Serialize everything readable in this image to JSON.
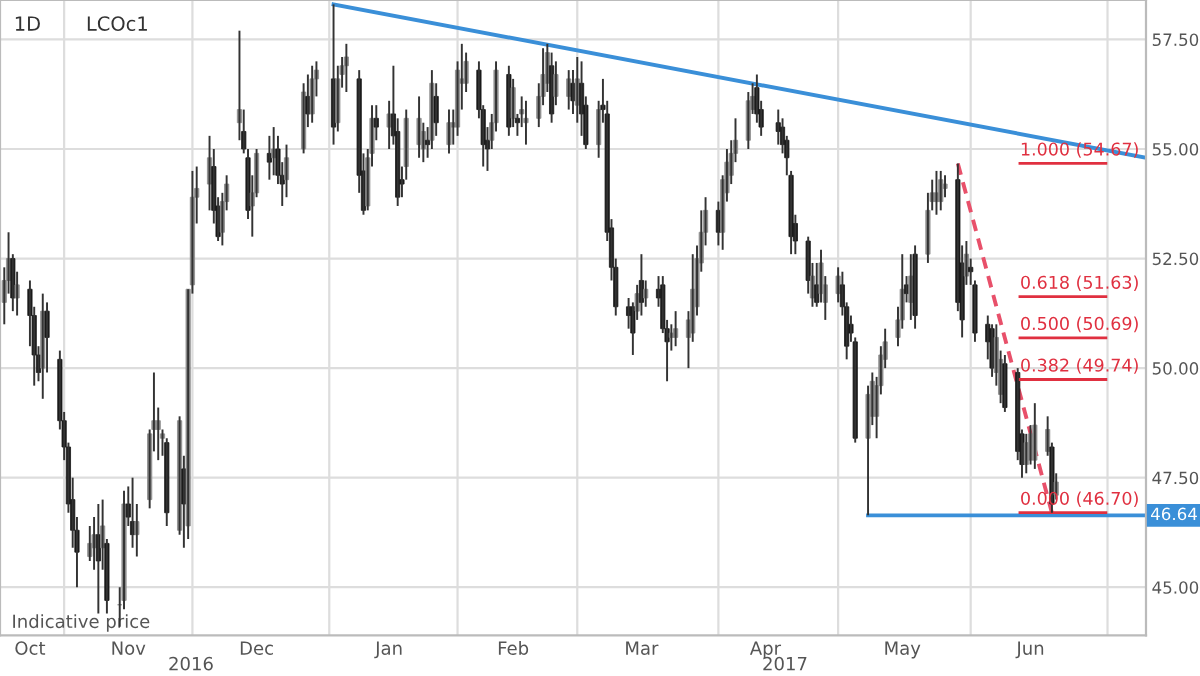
{
  "chart_data": {
    "type": "candlestick",
    "title": "1D",
    "subtitle": "LCOc1",
    "x": [
      "2016-10-18",
      "2016-10-19",
      "2016-10-20",
      "2016-10-21",
      "2016-10-24",
      "2016-10-25",
      "2016-10-26",
      "2016-10-27",
      "2016-10-28",
      "2016-10-31",
      "2016-11-01",
      "2016-11-02",
      "2016-11-03",
      "2016-11-04",
      "2016-11-07",
      "2016-11-08",
      "2016-11-09",
      "2016-11-10",
      "2016-11-11",
      "2016-11-14",
      "2016-11-15",
      "2016-11-16",
      "2016-11-17",
      "2016-11-18",
      "2016-11-21",
      "2016-11-22",
      "2016-11-23",
      "2016-11-24",
      "2016-11-25",
      "2016-11-28",
      "2016-11-29",
      "2016-11-30",
      "2016-12-01",
      "2016-12-02",
      "2016-12-05",
      "2016-12-06",
      "2016-12-07",
      "2016-12-08",
      "2016-12-09",
      "2016-12-12",
      "2016-12-13",
      "2016-12-14",
      "2016-12-15",
      "2016-12-16",
      "2016-12-19",
      "2016-12-20",
      "2016-12-21",
      "2016-12-22",
      "2016-12-23",
      "2016-12-27",
      "2016-12-28",
      "2016-12-29",
      "2016-12-30",
      "2017-01-03",
      "2017-01-04",
      "2017-01-05",
      "2017-01-06",
      "2017-01-09",
      "2017-01-10",
      "2017-01-11",
      "2017-01-12",
      "2017-01-13",
      "2017-01-16",
      "2017-01-17",
      "2017-01-18",
      "2017-01-19",
      "2017-01-20",
      "2017-01-23",
      "2017-01-24",
      "2017-01-25",
      "2017-01-26",
      "2017-01-27",
      "2017-01-30",
      "2017-01-31",
      "2017-02-01",
      "2017-02-02",
      "2017-02-03",
      "2017-02-06",
      "2017-02-07",
      "2017-02-08",
      "2017-02-09",
      "2017-02-10",
      "2017-02-13",
      "2017-02-14",
      "2017-02-15",
      "2017-02-16",
      "2017-02-17",
      "2017-02-20",
      "2017-02-21",
      "2017-02-22",
      "2017-02-23",
      "2017-02-24",
      "2017-02-27",
      "2017-02-28",
      "2017-03-01",
      "2017-03-02",
      "2017-03-03",
      "2017-03-06",
      "2017-03-07",
      "2017-03-08",
      "2017-03-09",
      "2017-03-10",
      "2017-03-13",
      "2017-03-14",
      "2017-03-15",
      "2017-03-16",
      "2017-03-17",
      "2017-03-20",
      "2017-03-21",
      "2017-03-22",
      "2017-03-23",
      "2017-03-24",
      "2017-03-27",
      "2017-03-28",
      "2017-03-29",
      "2017-03-30",
      "2017-03-31",
      "2017-04-03",
      "2017-04-04",
      "2017-04-05",
      "2017-04-06",
      "2017-04-07",
      "2017-04-10",
      "2017-04-11",
      "2017-04-12",
      "2017-04-13",
      "2017-04-17",
      "2017-04-18",
      "2017-04-19",
      "2017-04-20",
      "2017-04-21",
      "2017-04-24",
      "2017-04-25",
      "2017-04-26",
      "2017-04-27",
      "2017-04-28",
      "2017-05-01",
      "2017-05-02",
      "2017-05-03",
      "2017-05-04",
      "2017-05-05",
      "2017-05-08",
      "2017-05-09",
      "2017-05-10",
      "2017-05-11",
      "2017-05-12",
      "2017-05-15",
      "2017-05-16",
      "2017-05-17",
      "2017-05-18",
      "2017-05-19",
      "2017-05-22",
      "2017-05-23",
      "2017-05-24",
      "2017-05-25",
      "2017-05-26",
      "2017-05-29",
      "2017-05-30",
      "2017-05-31",
      "2017-06-01",
      "2017-06-02",
      "2017-06-05",
      "2017-06-06",
      "2017-06-07",
      "2017-06-08",
      "2017-06-09",
      "2017-06-12",
      "2017-06-13",
      "2017-06-14",
      "2017-06-15",
      "2017-06-16",
      "2017-06-19",
      "2017-06-20",
      "2017-06-21"
    ],
    "ohlc": [
      [
        51.5,
        52.3,
        51.0,
        52.0
      ],
      [
        52.0,
        53.1,
        51.7,
        52.5
      ],
      [
        52.5,
        52.6,
        51.3,
        51.6
      ],
      [
        51.6,
        52.2,
        51.2,
        51.9
      ],
      [
        51.8,
        52.0,
        50.5,
        51.2
      ],
      [
        51.2,
        51.4,
        49.6,
        50.3
      ],
      [
        50.3,
        50.5,
        49.7,
        49.9
      ],
      [
        50.0,
        51.7,
        49.3,
        51.3
      ],
      [
        51.3,
        51.5,
        49.9,
        50.7
      ],
      [
        50.2,
        50.4,
        48.6,
        48.8
      ],
      [
        48.8,
        49.0,
        47.9,
        48.2
      ],
      [
        48.2,
        48.3,
        46.7,
        46.9
      ],
      [
        47.0,
        47.5,
        45.9,
        46.3
      ],
      [
        46.3,
        46.6,
        45.0,
        45.8
      ],
      [
        45.7,
        46.4,
        45.6,
        46.0
      ],
      [
        45.9,
        46.6,
        45.4,
        46.2
      ],
      [
        46.2,
        46.9,
        44.4,
        45.6
      ],
      [
        45.9,
        47.0,
        45.4,
        46.4
      ],
      [
        46.0,
        46.1,
        44.4,
        44.7
      ],
      [
        44.6,
        45.0,
        44.1,
        44.6
      ],
      [
        44.7,
        47.2,
        44.5,
        46.9
      ],
      [
        46.9,
        47.3,
        46.4,
        46.6
      ],
      [
        46.5,
        47.5,
        45.9,
        46.2
      ],
      [
        46.2,
        46.9,
        45.7,
        46.5
      ],
      [
        47.0,
        48.6,
        46.8,
        48.5
      ],
      [
        48.6,
        49.9,
        48.1,
        48.8
      ],
      [
        48.6,
        49.1,
        47.9,
        48.8
      ],
      [
        48.4,
        48.6,
        48.0,
        48.5
      ],
      [
        48.3,
        48.4,
        46.4,
        46.7
      ],
      [
        46.3,
        48.9,
        46.2,
        48.8
      ],
      [
        47.7,
        48.0,
        45.9,
        46.9
      ],
      [
        46.4,
        51.8,
        46.1,
        51.8
      ],
      [
        51.9,
        54.5,
        51.7,
        53.9
      ],
      [
        53.9,
        54.6,
        53.3,
        54.1
      ],
      [
        54.2,
        55.3,
        53.6,
        54.8
      ],
      [
        54.6,
        55.0,
        53.3,
        53.6
      ],
      [
        53.7,
        53.9,
        52.9,
        53.0
      ],
      [
        53.1,
        54.0,
        52.8,
        53.8
      ],
      [
        53.8,
        54.4,
        53.6,
        54.2
      ],
      [
        55.6,
        57.7,
        55.2,
        55.9
      ],
      [
        55.4,
        55.9,
        54.9,
        55.0
      ],
      [
        54.8,
        55.0,
        53.4,
        53.6
      ],
      [
        53.7,
        54.4,
        53.0,
        54.0
      ],
      [
        54.0,
        55.0,
        53.9,
        54.9
      ],
      [
        54.9,
        55.3,
        54.3,
        54.7
      ],
      [
        54.8,
        55.5,
        54.4,
        55.0
      ],
      [
        55.0,
        55.3,
        54.2,
        54.4
      ],
      [
        54.4,
        54.7,
        53.7,
        54.2
      ],
      [
        54.3,
        55.1,
        53.9,
        54.8
      ],
      [
        55.0,
        56.5,
        54.9,
        56.3
      ],
      [
        56.2,
        56.7,
        55.5,
        55.8
      ],
      [
        55.8,
        56.9,
        55.6,
        56.6
      ],
      [
        56.6,
        57.0,
        56.2,
        56.8
      ],
      [
        56.6,
        58.3,
        55.1,
        55.5
      ],
      [
        55.6,
        56.9,
        55.4,
        56.6
      ],
      [
        56.7,
        57.1,
        56.4,
        56.9
      ],
      [
        56.9,
        57.4,
        56.3,
        57.1
      ],
      [
        56.6,
        56.8,
        54.0,
        54.4
      ],
      [
        54.5,
        54.9,
        53.5,
        53.6
      ],
      [
        53.7,
        55.0,
        53.6,
        54.8
      ],
      [
        54.9,
        56.0,
        54.6,
        55.7
      ],
      [
        55.7,
        56.0,
        55.2,
        55.5
      ],
      [
        55.5,
        56.1,
        55.0,
        55.8
      ],
      [
        55.8,
        56.9,
        55.1,
        55.3
      ],
      [
        55.4,
        55.7,
        53.7,
        53.9
      ],
      [
        54.3,
        54.6,
        53.9,
        54.2
      ],
      [
        54.6,
        55.9,
        54.3,
        55.7
      ],
      [
        55.1,
        56.2,
        54.8,
        55.7
      ],
      [
        55.0,
        55.6,
        54.7,
        55.4
      ],
      [
        55.2,
        55.5,
        54.8,
        55.1
      ],
      [
        55.2,
        56.8,
        55.0,
        56.5
      ],
      [
        56.2,
        56.5,
        55.3,
        55.6
      ],
      [
        55.1,
        55.9,
        54.9,
        55.6
      ],
      [
        55.5,
        55.9,
        55.1,
        55.6
      ],
      [
        55.5,
        57.0,
        55.3,
        56.8
      ],
      [
        56.5,
        57.4,
        55.9,
        56.6
      ],
      [
        56.5,
        57.2,
        56.3,
        57.0
      ],
      [
        56.8,
        57.0,
        55.7,
        55.9
      ],
      [
        55.9,
        56.0,
        54.6,
        55.1
      ],
      [
        55.2,
        55.5,
        54.5,
        55.0
      ],
      [
        55.2,
        55.8,
        55.0,
        55.6
      ],
      [
        55.6,
        57.0,
        55.4,
        56.8
      ],
      [
        56.7,
        56.9,
        55.3,
        55.5
      ],
      [
        55.7,
        56.6,
        55.5,
        56.4
      ],
      [
        55.7,
        55.8,
        55.3,
        55.6
      ],
      [
        55.8,
        56.2,
        55.5,
        55.9
      ],
      [
        55.6,
        56.1,
        55.1,
        55.7
      ],
      [
        55.7,
        56.5,
        55.5,
        56.2
      ],
      [
        56.2,
        57.3,
        56.0,
        56.7
      ],
      [
        56.5,
        57.4,
        56.3,
        57.2
      ],
      [
        56.9,
        57.2,
        55.6,
        55.8
      ],
      [
        56.2,
        57.0,
        56.0,
        56.7
      ],
      [
        56.2,
        56.8,
        55.9,
        56.6
      ],
      [
        56.5,
        56.8,
        55.8,
        56.1
      ],
      [
        56.0,
        57.1,
        55.6,
        56.6
      ],
      [
        56.5,
        57.0,
        55.3,
        55.8
      ],
      [
        56.0,
        56.2,
        55.0,
        55.1
      ],
      [
        55.1,
        56.1,
        54.8,
        55.9
      ],
      [
        56.0,
        56.6,
        55.6,
        55.9
      ],
      [
        55.8,
        56.1,
        52.9,
        53.1
      ],
      [
        53.2,
        53.4,
        52.0,
        52.3
      ],
      [
        52.3,
        52.5,
        51.2,
        51.4
      ],
      [
        51.4,
        51.6,
        50.9,
        51.2
      ],
      [
        51.4,
        51.5,
        50.3,
        50.8
      ],
      [
        51.3,
        51.9,
        51.1,
        51.7
      ],
      [
        52.0,
        52.6,
        51.2,
        51.5
      ],
      [
        51.6,
        52.0,
        51.4,
        51.8
      ],
      [
        51.8,
        52.1,
        51.4,
        51.6
      ],
      [
        51.9,
        52.1,
        50.8,
        50.9
      ],
      [
        50.9,
        51.1,
        49.7,
        50.6
      ],
      [
        50.7,
        51.0,
        50.4,
        50.8
      ],
      [
        50.7,
        51.3,
        50.5,
        50.9
      ],
      [
        50.7,
        51.3,
        50.0,
        51.1
      ],
      [
        50.8,
        52.6,
        50.6,
        51.8
      ],
      [
        51.4,
        52.8,
        51.2,
        52.5
      ],
      [
        52.4,
        53.6,
        52.2,
        53.1
      ],
      [
        53.1,
        53.9,
        52.8,
        53.6
      ],
      [
        53.6,
        53.8,
        52.8,
        53.1
      ],
      [
        53.1,
        54.4,
        52.7,
        54.3
      ],
      [
        54.0,
        55.0,
        53.8,
        54.7
      ],
      [
        54.4,
        55.2,
        54.2,
        54.9
      ],
      [
        54.9,
        55.7,
        54.7,
        55.2
      ],
      [
        55.2,
        56.3,
        55.0,
        56.1
      ],
      [
        55.9,
        56.5,
        55.8,
        56.2
      ],
      [
        56.4,
        56.7,
        55.6,
        55.8
      ],
      [
        55.9,
        56.1,
        55.3,
        55.5
      ],
      [
        55.6,
        55.9,
        55.1,
        55.4
      ],
      [
        55.5,
        55.7,
        54.9,
        55.1
      ],
      [
        55.2,
        55.3,
        54.4,
        54.8
      ],
      [
        54.4,
        54.5,
        52.6,
        53.0
      ],
      [
        53.3,
        53.5,
        52.6,
        52.9
      ],
      [
        52.9,
        53.0,
        51.7,
        52.0
      ],
      [
        51.6,
        52.4,
        51.4,
        52.1
      ],
      [
        51.9,
        52.4,
        51.4,
        51.5
      ],
      [
        51.7,
        52.7,
        51.5,
        52.4
      ],
      [
        51.5,
        52.1,
        51.1,
        51.9
      ],
      [
        51.7,
        52.3,
        51.5,
        52.1
      ],
      [
        51.9,
        52.2,
        51.2,
        51.4
      ],
      [
        51.4,
        51.5,
        50.2,
        50.5
      ],
      [
        51.0,
        51.2,
        50.6,
        50.8
      ],
      [
        50.6,
        50.7,
        48.3,
        48.4
      ],
      [
        48.4,
        49.6,
        46.64,
        49.4
      ],
      [
        48.9,
        49.9,
        48.7,
        49.7
      ],
      [
        48.9,
        49.8,
        48.4,
        49.6
      ],
      [
        49.6,
        50.5,
        49.4,
        50.3
      ],
      [
        50.2,
        50.9,
        50.0,
        50.6
      ],
      [
        50.7,
        51.4,
        50.5,
        51.1
      ],
      [
        51.1,
        52.6,
        50.9,
        51.8
      ],
      [
        51.9,
        52.1,
        51.5,
        51.7
      ],
      [
        51.5,
        52.6,
        51.1,
        52.1
      ],
      [
        52.6,
        52.8,
        50.9,
        51.2
      ],
      [
        52.6,
        54.0,
        52.4,
        53.6
      ],
      [
        53.8,
        54.3,
        53.6,
        54.0
      ],
      [
        53.8,
        54.5,
        53.5,
        54.0
      ],
      [
        53.8,
        54.5,
        53.6,
        54.3
      ],
      [
        54.1,
        54.4,
        53.9,
        54.2
      ],
      [
        54.3,
        54.67,
        51.3,
        51.5
      ],
      [
        52.4,
        52.8,
        50.7,
        51.1
      ],
      [
        52.1,
        52.9,
        51.9,
        52.6
      ],
      [
        52.3,
        52.5,
        51.9,
        52.2
      ],
      [
        51.9,
        52.0,
        50.6,
        50.8
      ],
      [
        51.0,
        51.2,
        50.2,
        50.6
      ],
      [
        50.9,
        51.0,
        49.8,
        50.0
      ],
      [
        49.9,
        51.0,
        49.6,
        50.7
      ],
      [
        49.4,
        50.4,
        49.2,
        50.2
      ],
      [
        50.1,
        50.3,
        49.0,
        49.1
      ],
      [
        49.9,
        50.0,
        47.9,
        48.1
      ],
      [
        48.5,
        48.6,
        47.5,
        47.8
      ],
      [
        47.8,
        48.5,
        47.6,
        48.3
      ],
      [
        47.9,
        48.7,
        47.8,
        48.5
      ],
      [
        47.9,
        49.2,
        47.7,
        48.7
      ],
      [
        48.1,
        48.9,
        48.0,
        48.6
      ],
      [
        48.2,
        48.3,
        46.7,
        46.9
      ],
      [
        47.1,
        47.6,
        47.0,
        47.4
      ]
    ],
    "series": [
      {
        "type": "line",
        "color": "#3a8fd8",
        "x": [
          "2017-01-03",
          "2017-07-12"
        ],
        "values": [
          58.3,
          54.8
        ]
      },
      {
        "type": "line",
        "color": "#3a8fd8",
        "x": [
          "2017-05-08",
          "2017-07-12"
        ],
        "values": [
          46.64,
          46.64
        ]
      },
      {
        "type": "line",
        "color": "#e8506a",
        "line_style": "dashed",
        "x": [
          "2017-05-29",
          "2017-06-20"
        ],
        "values": [
          54.67,
          46.7
        ]
      }
    ],
    "xlim": [
      "2016-10-17",
      "2017-07-12"
    ],
    "xticks": [
      {
        "value": "2016-10-24",
        "label": "Oct"
      },
      {
        "value": "2016-11-01",
        "label": null
      },
      {
        "value": "2016-11-16",
        "label": "Nov"
      },
      {
        "value": "2016-12-01",
        "label": null
      },
      {
        "value": "2016-12-16",
        "label": "Dec"
      },
      {
        "value": "2017-01-02",
        "label": null
      },
      {
        "value": "2017-01-16",
        "label": "Jan"
      },
      {
        "value": "2017-02-01",
        "label": null
      },
      {
        "value": "2017-02-14",
        "label": "Feb"
      },
      {
        "value": "2017-03-01",
        "label": null
      },
      {
        "value": "2017-03-16",
        "label": "Mar"
      },
      {
        "value": "2017-04-03",
        "label": null
      },
      {
        "value": "2017-04-14",
        "label": "Apr"
      },
      {
        "value": "2017-05-01",
        "label": null
      },
      {
        "value": "2017-05-16",
        "label": "May"
      },
      {
        "value": "2017-06-01",
        "label": null
      },
      {
        "value": "2017-06-15",
        "label": "Jun"
      },
      {
        "value": "2017-07-03",
        "label": null
      }
    ],
    "ylim": [
      43.9,
      58.4
    ],
    "yticks": [
      {
        "value": 45,
        "label": "45.00"
      },
      {
        "value": 47.5,
        "label": "47.50"
      },
      {
        "value": 50,
        "label": "50.00"
      },
      {
        "value": 52.5,
        "label": "52.50"
      },
      {
        "value": 55,
        "label": "55.00"
      },
      {
        "value": 57.5,
        "label": "57.50"
      }
    ],
    "grid": true,
    "ref_lines": [
      {
        "axis": "y",
        "value": 54.67,
        "label": "1.000 (54.67)",
        "color": "#e03040"
      },
      {
        "axis": "y",
        "value": 51.63,
        "label": "0.618 (51.63)",
        "color": "#e03040"
      },
      {
        "axis": "y",
        "value": 50.69,
        "label": "0.500 (50.69)",
        "color": "#e03040"
      },
      {
        "axis": "y",
        "value": 49.74,
        "label": "0.382 (49.74)",
        "color": "#e03040"
      },
      {
        "axis": "y",
        "value": 46.7,
        "label": "0.000 (46.70)",
        "color": "#e03040"
      }
    ],
    "annotations": [
      "Indicative price",
      "2016",
      "2017",
      {
        "text": "46.64",
        "x": "2017-07-12",
        "y": 46.64
      }
    ]
  }
}
